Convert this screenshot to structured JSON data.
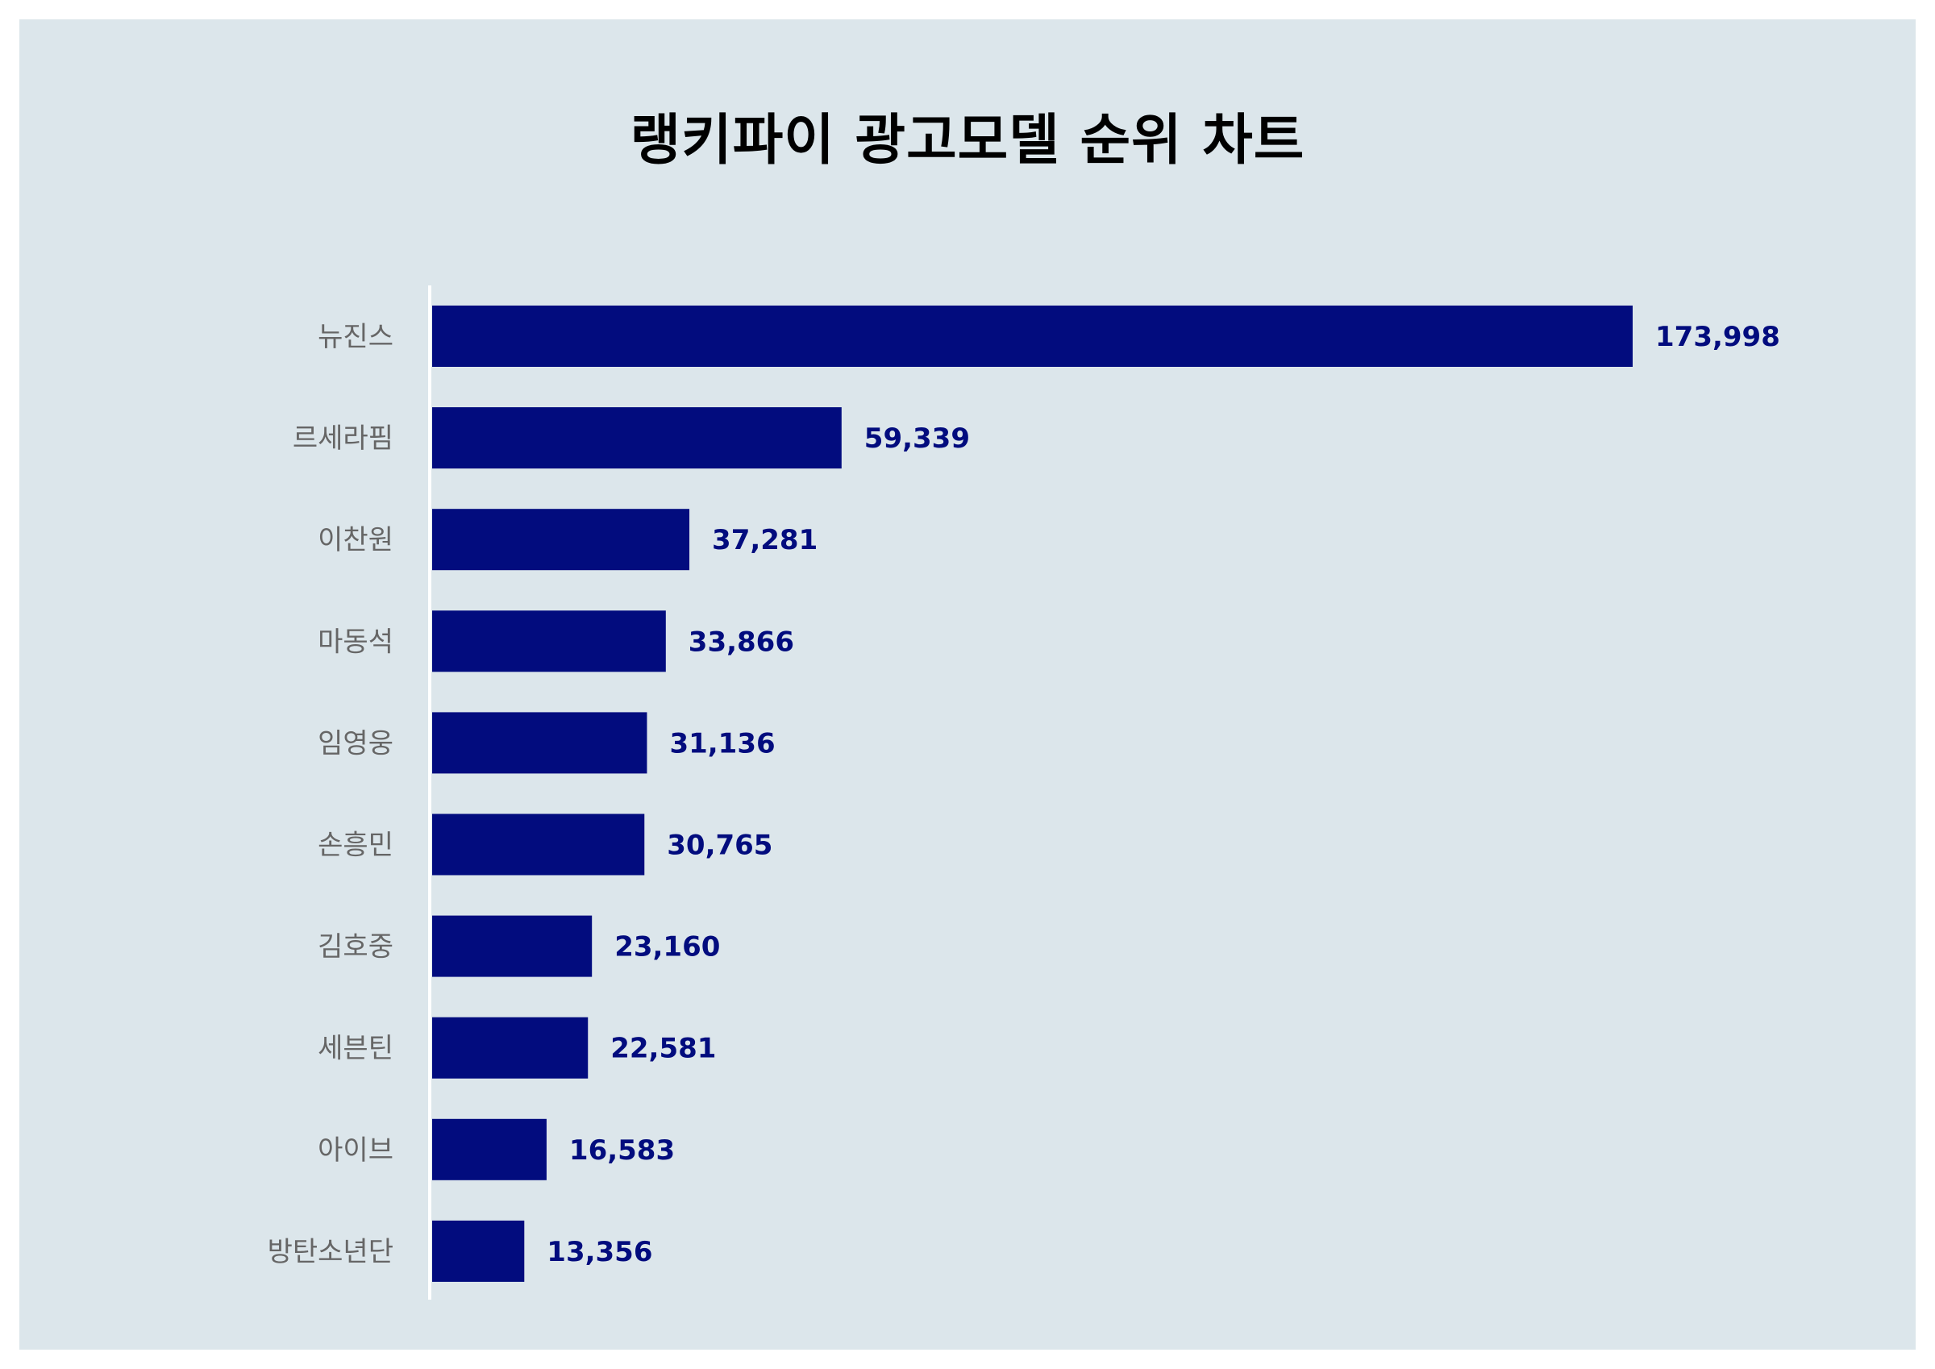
{
  "title": "랭키파이 광고모델 순위 차트",
  "colors": {
    "background": "#dce6eb",
    "bar": "#020c7e",
    "value_label": "#020c7e",
    "category_label": "#666666",
    "axis": "#ffffff"
  },
  "chart_data": {
    "type": "bar",
    "orientation": "horizontal",
    "title": "랭키파이 광고모델 순위 차트",
    "categories": [
      "뉴진스",
      "르세라핌",
      "이찬원",
      "마동석",
      "임영웅",
      "손흥민",
      "김호중",
      "세븐틴",
      "아이브",
      "방탄소년단"
    ],
    "values": [
      173998,
      59339,
      37281,
      33866,
      31136,
      30765,
      23160,
      22581,
      16583,
      13356
    ],
    "value_labels": [
      "173,998",
      "59,339",
      "37,281",
      "33,866",
      "31,136",
      "30,765",
      "23,160",
      "22,581",
      "16,583",
      "13,356"
    ],
    "xlim": [
      0,
      200000
    ],
    "grid": false,
    "legend": "none"
  }
}
